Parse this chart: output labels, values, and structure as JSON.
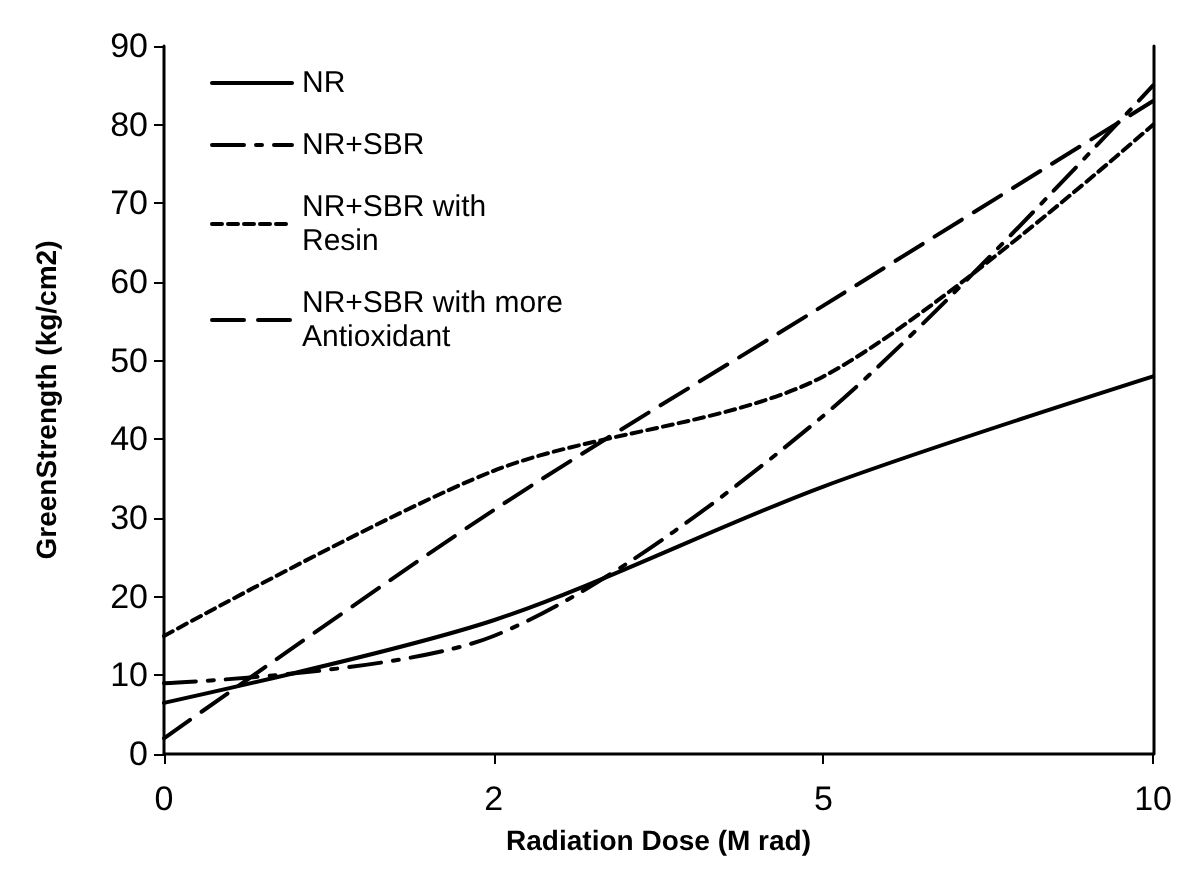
{
  "chart_data": {
    "type": "line",
    "xlabel": "Radiation Dose (M rad)",
    "ylabel": "GreenStrength (kg/cm2)",
    "categories": [
      "0",
      "2",
      "5",
      "10"
    ],
    "ylim": [
      0,
      90
    ],
    "yticks": [
      0,
      10,
      20,
      30,
      40,
      50,
      60,
      70,
      80,
      90
    ],
    "grid": false,
    "legend": "top left",
    "marker": "none",
    "series": [
      {
        "name": "NR",
        "color": "#000000",
        "line_style": "solid",
        "values": [
          6.5,
          17,
          34,
          48
        ]
      },
      {
        "name": "NR+SBR",
        "color": "#000000",
        "line_style": "dashdot",
        "values": [
          9,
          15,
          43,
          85
        ]
      },
      {
        "name": "NR+SBR with Resin",
        "color": "#000000",
        "line_style": "dotted",
        "values": [
          15,
          36,
          48,
          80
        ]
      },
      {
        "name": "NR+SBR with more Antioxidant",
        "color": "#000000",
        "line_style": "dashed",
        "values": [
          2,
          31,
          57,
          83
        ]
      }
    ]
  }
}
